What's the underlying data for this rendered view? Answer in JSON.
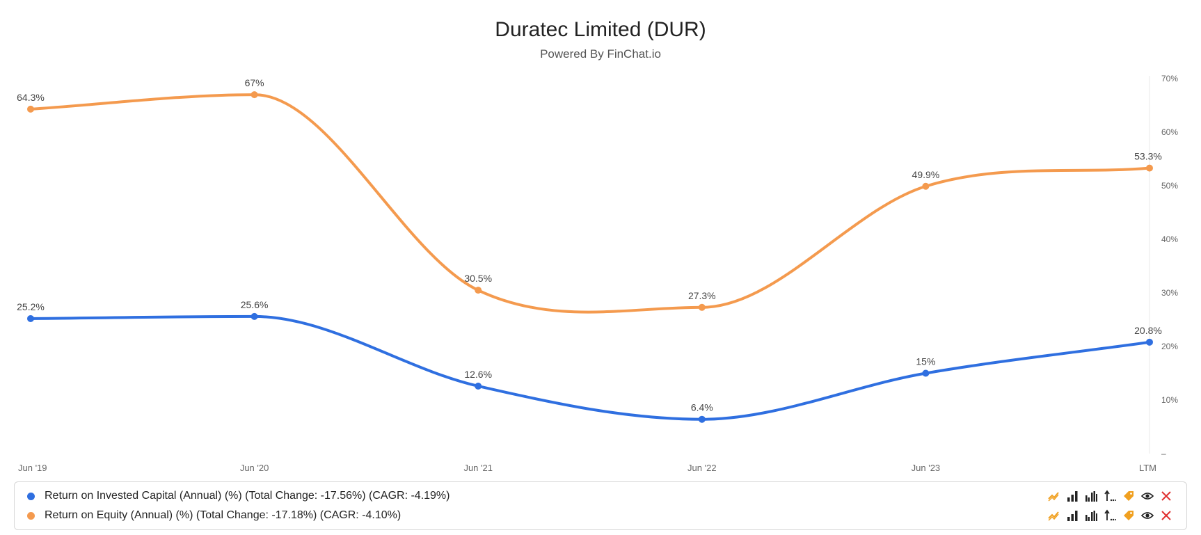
{
  "title": "Duratec Limited (DUR)",
  "subtitle": "Powered By FinChat.io",
  "colors": {
    "roic": "#2f6fe0",
    "roe": "#f49a4e",
    "grid": "#e8e8e8",
    "axis_text": "#666666",
    "tool_dark": "#222222",
    "tool_orange": "#f0a020",
    "tool_red": "#e03030"
  },
  "chart_data": {
    "type": "line",
    "categories": [
      "Jun '19",
      "Jun '20",
      "Jun '21",
      "Jun '22",
      "Jun '23",
      "LTM"
    ],
    "y_ticks": [
      "70%",
      "60%",
      "50%",
      "40%",
      "30%",
      "20%",
      "10%",
      "–"
    ],
    "ylim": [
      0,
      70
    ],
    "y_axis_side": "right",
    "series": [
      {
        "name": "Return on Equity (Annual) (%)",
        "color": "#f49a4e",
        "values": [
          64.3,
          67,
          30.5,
          27.3,
          49.9,
          53.3
        ],
        "labels": [
          "64.3%",
          "67%",
          "30.5%",
          "27.3%",
          "49.9%",
          "53.3%"
        ]
      },
      {
        "name": "Return on Invested Capital (Annual) (%)",
        "color": "#2f6fe0",
        "values": [
          25.2,
          25.6,
          12.6,
          6.4,
          15,
          20.8
        ],
        "labels": [
          "25.2%",
          "25.6%",
          "12.6%",
          "6.4%",
          "15%",
          "20.8%"
        ]
      }
    ]
  },
  "legend": [
    {
      "label": "Return on Invested Capital (Annual) (%) (Total Change: -17.56%) (CAGR: -4.19%)",
      "color": "#2f6fe0"
    },
    {
      "label": "Return on Equity (Annual) (%) (Total Change: -17.18%) (CAGR: -4.10%)",
      "color": "#f49a4e"
    }
  ],
  "toolbar_icons": [
    "trend-icon",
    "bar-chart-icon",
    "grouped-bar-icon",
    "sort-icon",
    "tag-icon",
    "eye-icon",
    "close-icon"
  ]
}
